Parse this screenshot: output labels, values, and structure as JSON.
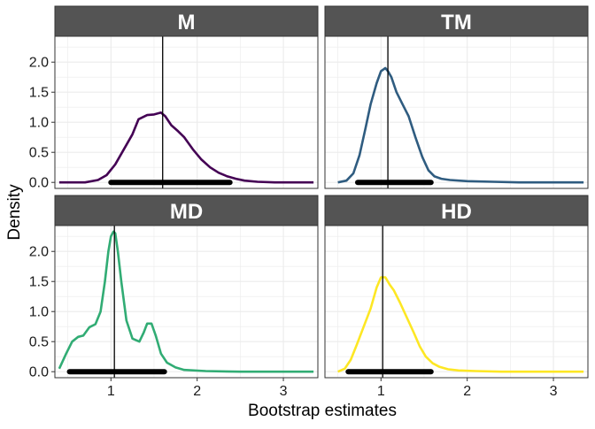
{
  "chart_data": {
    "type": "line",
    "xlabel": "Bootstrap estimates",
    "ylabel": "Density",
    "xlim": [
      0.35,
      3.4
    ],
    "ylim": [
      -0.1,
      2.43
    ],
    "x_ticks": [
      1,
      2,
      3
    ],
    "y_ticks": [
      0.0,
      0.5,
      1.0,
      1.5,
      2.0
    ],
    "x_tick_labels": [
      "1",
      "2",
      "3"
    ],
    "y_tick_labels": [
      "0.0",
      "0.5",
      "1.0",
      "1.5",
      "2.0"
    ],
    "grid": true,
    "facets": [
      "M",
      "TM",
      "MD",
      "HD"
    ],
    "layout": "2x2",
    "series": [
      {
        "name": "M",
        "color": "#440154",
        "vline": 1.6,
        "interval": [
          1.0,
          2.38
        ],
        "x": [
          0.4,
          0.7,
          0.85,
          0.95,
          1.05,
          1.15,
          1.25,
          1.32,
          1.42,
          1.5,
          1.58,
          1.63,
          1.7,
          1.78,
          1.85,
          1.95,
          2.05,
          2.15,
          2.25,
          2.35,
          2.45,
          2.55,
          2.7,
          2.9,
          3.1,
          3.35
        ],
        "y": [
          0.0,
          0.0,
          0.04,
          0.12,
          0.3,
          0.55,
          0.8,
          1.05,
          1.12,
          1.13,
          1.16,
          1.1,
          0.95,
          0.85,
          0.75,
          0.55,
          0.38,
          0.25,
          0.16,
          0.1,
          0.06,
          0.03,
          0.01,
          0.0,
          0.0,
          0.0
        ]
      },
      {
        "name": "TM",
        "color": "#2f5c80",
        "vline": 1.08,
        "interval": [
          0.73,
          1.58
        ],
        "x": [
          0.5,
          0.6,
          0.68,
          0.75,
          0.82,
          0.88,
          0.95,
          1.0,
          1.05,
          1.08,
          1.12,
          1.18,
          1.25,
          1.32,
          1.4,
          1.48,
          1.55,
          1.62,
          1.7,
          1.8,
          2.0,
          2.3,
          2.6,
          3.0,
          3.35
        ],
        "y": [
          0.0,
          0.03,
          0.15,
          0.45,
          0.9,
          1.3,
          1.65,
          1.85,
          1.9,
          1.85,
          1.75,
          1.5,
          1.3,
          1.1,
          0.75,
          0.42,
          0.2,
          0.1,
          0.06,
          0.04,
          0.02,
          0.01,
          0.0,
          0.0,
          0.0
        ]
      },
      {
        "name": "MD",
        "color": "#31ac74",
        "vline": 1.04,
        "interval": [
          0.52,
          1.62
        ],
        "x": [
          0.4,
          0.48,
          0.55,
          0.62,
          0.68,
          0.75,
          0.82,
          0.88,
          0.93,
          0.97,
          1.0,
          1.03,
          1.05,
          1.08,
          1.12,
          1.18,
          1.25,
          1.33,
          1.38,
          1.42,
          1.47,
          1.52,
          1.58,
          1.65,
          1.75,
          1.85,
          2.1,
          2.5,
          3.35
        ],
        "y": [
          0.05,
          0.3,
          0.5,
          0.58,
          0.6,
          0.74,
          0.79,
          1.0,
          1.5,
          2.0,
          2.25,
          2.33,
          2.3,
          2.0,
          1.5,
          0.85,
          0.55,
          0.5,
          0.65,
          0.8,
          0.8,
          0.6,
          0.3,
          0.15,
          0.07,
          0.03,
          0.01,
          0.0,
          0.0
        ]
      },
      {
        "name": "HD",
        "color": "#fde724",
        "vline": 1.02,
        "interval": [
          0.62,
          1.58
        ],
        "x": [
          0.5,
          0.58,
          0.65,
          0.72,
          0.8,
          0.88,
          0.95,
          1.0,
          1.05,
          1.1,
          1.15,
          1.22,
          1.3,
          1.38,
          1.45,
          1.52,
          1.6,
          1.68,
          1.78,
          1.9,
          2.1,
          2.4,
          2.8,
          3.35
        ],
        "y": [
          0.0,
          0.05,
          0.2,
          0.45,
          0.75,
          1.05,
          1.4,
          1.57,
          1.57,
          1.45,
          1.35,
          1.15,
          0.9,
          0.65,
          0.42,
          0.25,
          0.14,
          0.08,
          0.04,
          0.02,
          0.01,
          0.0,
          0.0,
          0.0
        ]
      }
    ]
  }
}
